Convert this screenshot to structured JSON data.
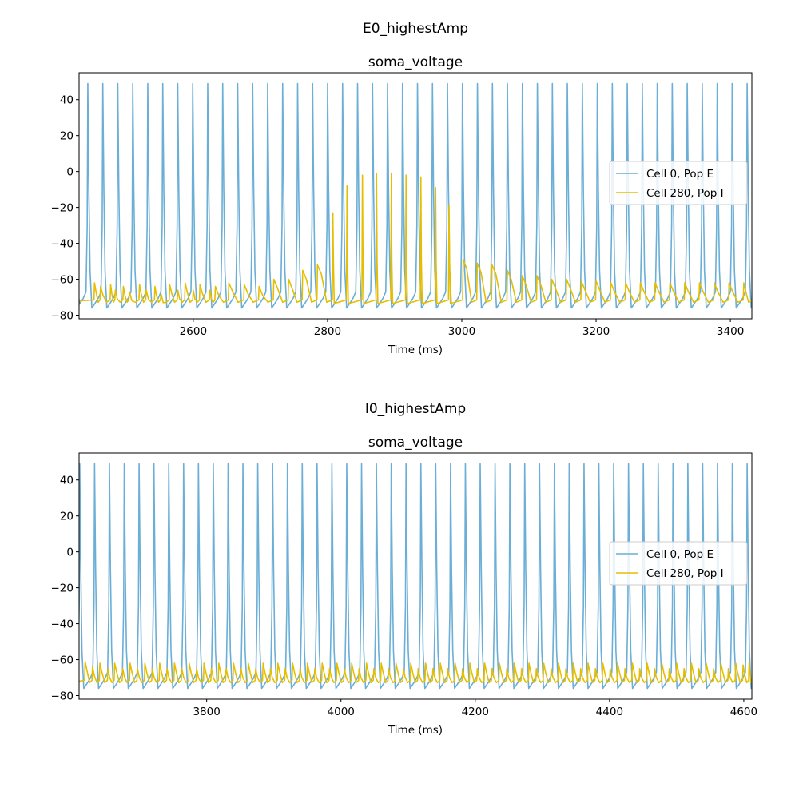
{
  "colors": {
    "series_e": "#6baed6",
    "series_i": "#e6be00"
  },
  "chart_data": [
    {
      "type": "line",
      "suptitle": "E0_highestAmp",
      "title": "soma_voltage",
      "xlabel": "Time (ms)",
      "ylabel": "",
      "xlim": [
        2430,
        3432
      ],
      "ylim": [
        -82,
        55
      ],
      "xticks": [
        2600,
        2800,
        3000,
        3200,
        3400
      ],
      "yticks": [
        40,
        20,
        0,
        -20,
        -40,
        -60,
        -80
      ],
      "xtick_labels": [
        "2600",
        "2800",
        "3000",
        "3200",
        "3400"
      ],
      "ytick_labels": [
        "40",
        "20",
        "0",
        "−20",
        "−40",
        "−60",
        "−80"
      ],
      "grid": false,
      "legend": "center-right",
      "series": [
        {
          "name": "Cell 0, Pop E",
          "kind": "spikes",
          "rest": -71,
          "trough": -76,
          "peaks_start": 2443,
          "peaks_end": 3425,
          "n_peaks": 45,
          "peak": 49
        },
        {
          "name": "Cell 280, Pop I",
          "kind": "events",
          "rest": -72,
          "events": [
            [
              2453,
              -62
            ],
            [
              2462,
              -64
            ],
            [
              2477,
              -63
            ],
            [
              2484,
              -66
            ],
            [
              2496,
              -64
            ],
            [
              2505,
              -67
            ],
            [
              2520,
              -63
            ],
            [
              2530,
              -66
            ],
            [
              2543,
              -64
            ],
            [
              2552,
              -68
            ],
            [
              2565,
              -63
            ],
            [
              2577,
              -66
            ],
            [
              2588,
              -62
            ],
            [
              2600,
              -66
            ],
            [
              2610,
              -63
            ],
            [
              2625,
              -66
            ],
            [
              2633,
              -64
            ],
            [
              2653,
              -62
            ],
            [
              2676,
              -63
            ],
            [
              2698,
              -64
            ],
            [
              2720,
              -60
            ],
            [
              2742,
              -60
            ],
            [
              2763,
              -55
            ],
            [
              2785,
              -52
            ],
            [
              2808,
              -23
            ],
            [
              2829,
              -8
            ],
            [
              2852,
              -2
            ],
            [
              2873,
              -1
            ],
            [
              2895,
              -1
            ],
            [
              2917,
              -2
            ],
            [
              2939,
              -3
            ],
            [
              2961,
              -9
            ],
            [
              2981,
              -19
            ],
            [
              3002,
              -49
            ],
            [
              3023,
              -51
            ],
            [
              3045,
              -52
            ],
            [
              3068,
              -55
            ],
            [
              3090,
              -58
            ],
            [
              3112,
              -58
            ],
            [
              3134,
              -60
            ],
            [
              3156,
              -60
            ],
            [
              3178,
              -61
            ],
            [
              3200,
              -61
            ],
            [
              3222,
              -62
            ],
            [
              3244,
              -62
            ],
            [
              3266,
              -62
            ],
            [
              3288,
              -62
            ],
            [
              3310,
              -62
            ],
            [
              3332,
              -62
            ],
            [
              3354,
              -62
            ],
            [
              3376,
              -62
            ],
            [
              3398,
              -62
            ],
            [
              3420,
              -62
            ]
          ]
        }
      ]
    },
    {
      "type": "line",
      "suptitle": "I0_highestAmp",
      "title": "soma_voltage",
      "xlabel": "Time (ms)",
      "ylabel": "",
      "xlim": [
        3610,
        4612
      ],
      "ylim": [
        -82,
        55
      ],
      "xticks": [
        3800,
        4000,
        4200,
        4400,
        4600
      ],
      "yticks": [
        40,
        20,
        0,
        -20,
        -40,
        -60,
        -80
      ],
      "xtick_labels": [
        "3800",
        "4000",
        "4200",
        "4400",
        "4600"
      ],
      "ytick_labels": [
        "40",
        "20",
        "0",
        "−20",
        "−40",
        "−60",
        "−80"
      ],
      "grid": false,
      "legend": "center-right",
      "series": [
        {
          "name": "Cell 0, Pop E",
          "kind": "spikes",
          "rest": -71,
          "trough": -76,
          "peaks_start": 3611,
          "peaks_end": 4605,
          "n_peaks": 46,
          "peak": 49
        },
        {
          "name": "Cell 280, Pop I",
          "kind": "events",
          "rest": -72,
          "events": [
            [
              3619,
              -61
            ],
            [
              3630,
              -64
            ],
            [
              3641,
              -62
            ],
            [
              3653,
              -65
            ],
            [
              3663,
              -62
            ],
            [
              3675,
              -65
            ],
            [
              3686,
              -62
            ],
            [
              3697,
              -65
            ],
            [
              3708,
              -62
            ],
            [
              3719,
              -65
            ],
            [
              3730,
              -62
            ],
            [
              3741,
              -65
            ],
            [
              3752,
              -62
            ],
            [
              3763,
              -65
            ],
            [
              3774,
              -62
            ],
            [
              3785,
              -65
            ],
            [
              3796,
              -62
            ],
            [
              3807,
              -65
            ],
            [
              3818,
              -62
            ],
            [
              3829,
              -65
            ],
            [
              3840,
              -62
            ],
            [
              3851,
              -65
            ],
            [
              3862,
              -62
            ],
            [
              3873,
              -65
            ],
            [
              3884,
              -62
            ],
            [
              3895,
              -65
            ],
            [
              3906,
              -62
            ],
            [
              3917,
              -65
            ],
            [
              3928,
              -62
            ],
            [
              3939,
              -65
            ],
            [
              3950,
              -62
            ],
            [
              3961,
              -65
            ],
            [
              3972,
              -62
            ],
            [
              3983,
              -65
            ],
            [
              3994,
              -62
            ],
            [
              4005,
              -65
            ],
            [
              4016,
              -62
            ],
            [
              4027,
              -65
            ],
            [
              4038,
              -62
            ],
            [
              4049,
              -65
            ],
            [
              4060,
              -62
            ],
            [
              4071,
              -65
            ],
            [
              4082,
              -62
            ],
            [
              4093,
              -65
            ],
            [
              4104,
              -62
            ],
            [
              4115,
              -65
            ],
            [
              4126,
              -62
            ],
            [
              4137,
              -65
            ],
            [
              4148,
              -62
            ],
            [
              4159,
              -65
            ],
            [
              4170,
              -62
            ],
            [
              4181,
              -65
            ],
            [
              4192,
              -62
            ],
            [
              4203,
              -65
            ],
            [
              4214,
              -62
            ],
            [
              4225,
              -65
            ],
            [
              4236,
              -62
            ],
            [
              4247,
              -65
            ],
            [
              4258,
              -62
            ],
            [
              4269,
              -65
            ],
            [
              4280,
              -62
            ],
            [
              4291,
              -65
            ],
            [
              4302,
              -62
            ],
            [
              4313,
              -65
            ],
            [
              4324,
              -62
            ],
            [
              4335,
              -65
            ],
            [
              4346,
              -62
            ],
            [
              4357,
              -65
            ],
            [
              4368,
              -62
            ],
            [
              4379,
              -65
            ],
            [
              4390,
              -62
            ],
            [
              4401,
              -65
            ],
            [
              4412,
              -62
            ],
            [
              4423,
              -65
            ],
            [
              4434,
              -62
            ],
            [
              4445,
              -65
            ],
            [
              4456,
              -62
            ],
            [
              4467,
              -65
            ],
            [
              4478,
              -62
            ],
            [
              4489,
              -65
            ],
            [
              4500,
              -62
            ],
            [
              4511,
              -65
            ],
            [
              4522,
              -62
            ],
            [
              4533,
              -65
            ],
            [
              4544,
              -62
            ],
            [
              4555,
              -65
            ],
            [
              4566,
              -62
            ],
            [
              4577,
              -65
            ],
            [
              4588,
              -62
            ],
            [
              4599,
              -63
            ],
            [
              4608,
              -61
            ]
          ]
        }
      ]
    }
  ]
}
